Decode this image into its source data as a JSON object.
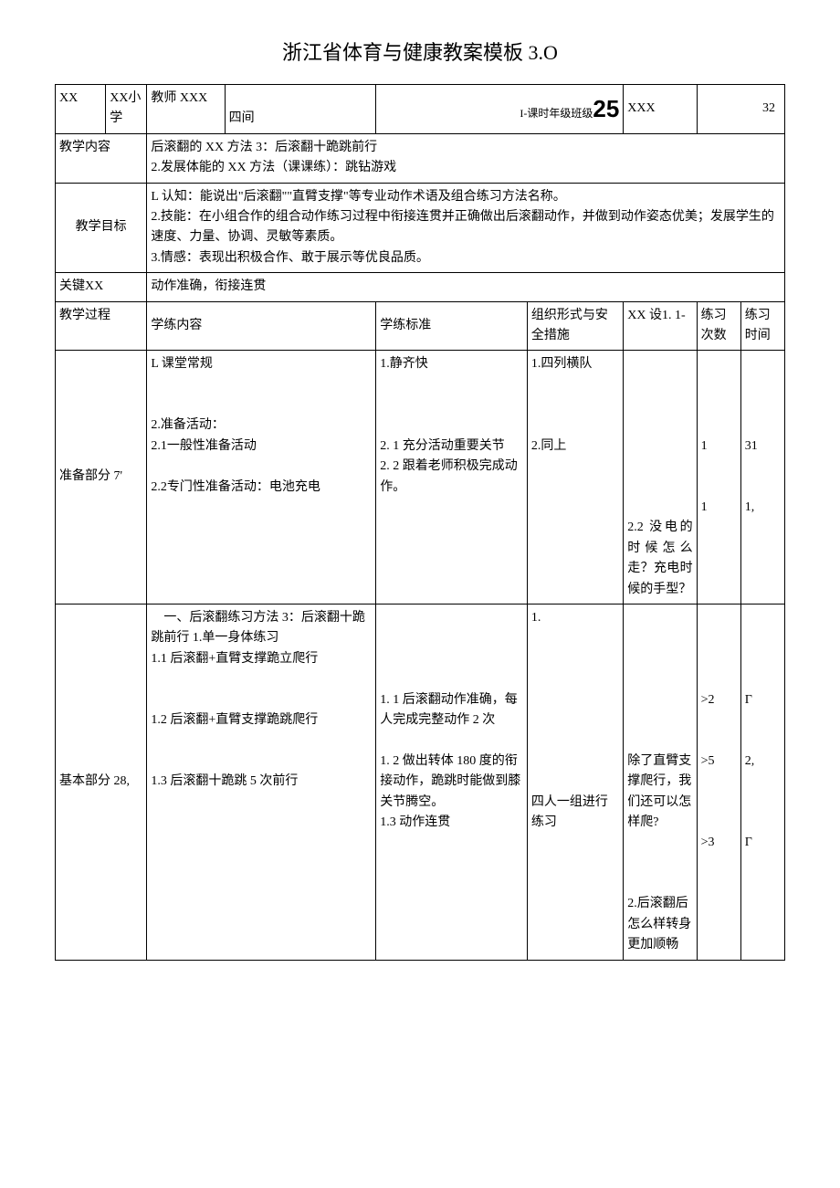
{
  "document": {
    "title": "浙江省体育与健康教案模板 3.O",
    "colors": {
      "text": "#000000",
      "background": "#ffffff",
      "border": "#000000"
    },
    "typography": {
      "title_fontsize": 22,
      "body_fontsize": 14,
      "big_num_fontsize": 26,
      "font_family": "SimSun"
    }
  },
  "header_row": {
    "label1": "XX",
    "school": "XX小学",
    "teacher_label": "教师 XXX",
    "room": "四间",
    "period_label": "I-课时年级班级",
    "period_num": "25",
    "class_code": "XXX",
    "count": "32"
  },
  "teaching_content": {
    "label": "教学内容",
    "body": "后滚翻的 XX 方法 3：后滚翻十跪跳前行\n2.发展体能的 XX 方法（课课练）：跳钻游戏"
  },
  "teaching_goal": {
    "label": "教学目标",
    "body": "L 认知：能说出\"后滚翻\"\"直臂支撑\"等专业动作术语及组合练习方法名称。\n2.技能：在小组合作的组合动作练习过程中衔接连贯并正确做出后滚翻动作，并做到动作姿态优美；发展学生的速度、力量、协调、灵敏等素质。\n3.情感：表现出积极合作、敢于展示等优良品质。"
  },
  "key_point": {
    "label": "关键XX",
    "body": "动作准确，衔接连贯"
  },
  "process_header": {
    "col1": "教学过程",
    "col2": "学练内容",
    "col3": "学练标准",
    "col4": "组织形式与安全措施",
    "col5": "XX 设1. 1-",
    "col6": "练习次数",
    "col7": "练习时间"
  },
  "prep_section": {
    "label": "准备部分 7'",
    "content": "L 课堂常规\n\n\n2.准备活动：\n2.1一般性准备活动\n\n2.2专门性准备活动：电池充电",
    "standard": "1.静齐快\n\n\n\n2. 1 充分活动重要关节\n2. 2 跟着老师积极完成动作。",
    "org": "1.四列横队\n\n\n\n2.同上",
    "design": "\n\n\n\n\n\n\n\n2.2 没电的时候怎么走？充电时候的手型？",
    "nums": "\n\n\n\n1\n\n\n1",
    "times": "\n\n\n\n31\n\n\n1,"
  },
  "basic_section": {
    "label": "基本部分 28,",
    "content": "　一、后滚翻练习方法 3：后滚翻十跪跳前行 1.单一身体练习\n1.1 后滚翻+直臂支撑跪立爬行\n\n\n1.2 后滚翻+直臂支撑跪跳爬行\n\n\n1.3 后滚翻十跪跳 5 次前行",
    "standard": "\n\n\n\n1. 1 后滚翻动作准确，每人完成完整动作 2 次\n\n1. 2 做出转体 180 度的衔接动作，跪跳时能做到膝关节腾空。\n1.3 动作连贯",
    "org": "1.\n\n\n\n\n\n\n\n\n四人一组进行练习",
    "design": "\n\n\n\n\n\n\n除了直臂支撑爬行，我们还可以怎样爬?\n\n\n\n2.后滚翻后怎么样转身更加顺畅",
    "nums": "\n\n\n\n>2\n\n\n>5\n\n\n\n>3",
    "times": "\n\n\n\nΓ\n\n\n2,\n\n\n\nΓ"
  }
}
